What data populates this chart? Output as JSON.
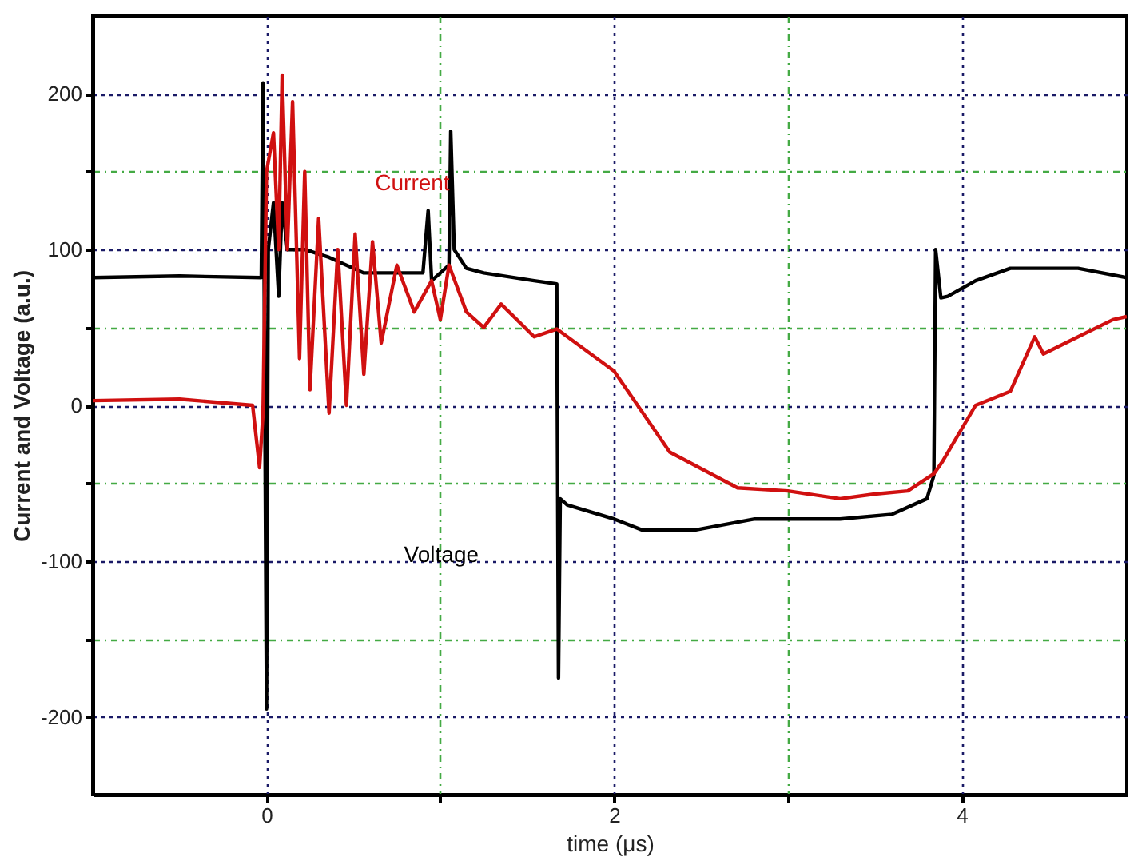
{
  "chart_data": {
    "type": "line",
    "xlabel": "time (μs)",
    "ylabel": "Current and Voltage (a.u.)",
    "xlim": [
      -1,
      4.95
    ],
    "ylim": [
      -250,
      250
    ],
    "xticks": [
      0,
      {
        "value": 1,
        "label": null
      },
      2,
      {
        "value": 3,
        "label": null
      },
      4
    ],
    "yticks": [
      -200,
      {
        "value": -150,
        "label": null
      },
      -100,
      {
        "value": -50,
        "label": null
      },
      0,
      {
        "value": 50,
        "label": null
      },
      100,
      {
        "value": 150,
        "label": null
      },
      200
    ],
    "grid": true,
    "line_style": "solid",
    "marker": "none",
    "series": [
      {
        "name": "Voltage",
        "color": "#000000",
        "x": [
          -1,
          -0.5,
          -0.03,
          -0.02,
          0,
          0.01,
          0.04,
          0.07,
          0.09,
          0.12,
          0.22,
          0.36,
          0.56,
          0.75,
          0.9,
          0.93,
          0.95,
          1.05,
          1.06,
          1.08,
          1.15,
          1.25,
          1.54,
          1.67,
          1.68,
          1.69,
          1.73,
          2.0,
          2.16,
          2.47,
          2.81,
          3.3,
          3.6,
          3.8,
          3.84,
          3.85,
          3.88,
          3.92,
          4.08,
          4.28,
          4.67,
          4.95
        ],
        "values": [
          82,
          83,
          82,
          207,
          -195,
          100,
          130,
          70,
          130,
          100,
          100,
          95,
          85,
          85,
          85,
          125,
          80,
          90,
          176,
          100,
          88,
          85,
          80,
          78,
          -175,
          -60,
          -64,
          -73,
          -80,
          -80,
          -73,
          -73,
          -70,
          -60,
          -45,
          100,
          69,
          70,
          80,
          88,
          88,
          82
        ]
      },
      {
        "name": "Current",
        "color": "#d01010",
        "x": [
          -1,
          -0.5,
          -0.08,
          -0.04,
          -0.02,
          0,
          0.04,
          0.07,
          0.09,
          0.12,
          0.15,
          0.19,
          0.22,
          0.25,
          0.3,
          0.36,
          0.41,
          0.46,
          0.51,
          0.56,
          0.61,
          0.66,
          0.75,
          0.85,
          0.95,
          1.0,
          1.05,
          1.15,
          1.25,
          1.35,
          1.54,
          1.67,
          2.0,
          2.32,
          2.71,
          3.0,
          3.3,
          3.5,
          3.69,
          3.84,
          3.89,
          4.08,
          4.28,
          4.42,
          4.47,
          4.67,
          4.87,
          4.95
        ],
        "values": [
          3,
          4,
          0,
          -40,
          -5,
          150,
          175,
          100,
          212,
          100,
          195,
          30,
          150,
          10,
          120,
          -5,
          100,
          0,
          110,
          20,
          105,
          40,
          90,
          60,
          80,
          55,
          90,
          60,
          50,
          65,
          44,
          49,
          22,
          -30,
          -53,
          -55,
          -60,
          -57,
          -55,
          -44,
          -36,
          0,
          9,
          44,
          33,
          44,
          55,
          57
        ]
      }
    ]
  }
}
